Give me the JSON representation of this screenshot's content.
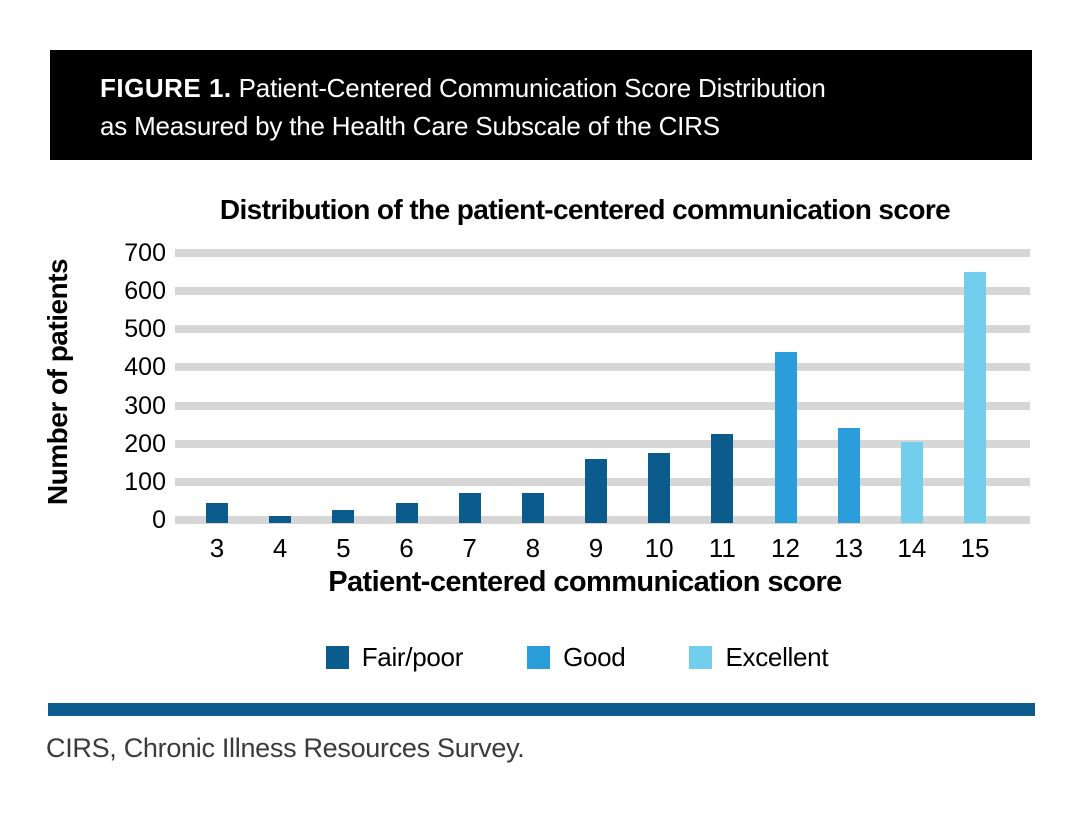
{
  "figure_header": {
    "label": "FIGURE 1.",
    "title_rest": " Patient-Centered Communication Score Distribution",
    "title_line2": "as Measured by the Health Care Subscale of the CIRS"
  },
  "chart_data": {
    "type": "bar",
    "title": "Distribution of the patient-centered communication score",
    "xlabel": "Patient-centered communication score",
    "ylabel": "Number of patients",
    "ylim": [
      0,
      700
    ],
    "yticks": [
      0,
      100,
      200,
      300,
      400,
      500,
      600,
      700
    ],
    "grid": true,
    "legend_position": "bottom",
    "categories": [
      "3",
      "4",
      "5",
      "6",
      "7",
      "8",
      "9",
      "10",
      "11",
      "12",
      "13",
      "14",
      "15"
    ],
    "series": [
      {
        "name": "Fair/poor",
        "color": "#0b5c8d",
        "values": [
          45,
          10,
          25,
          45,
          70,
          70,
          160,
          175,
          225,
          null,
          null,
          null,
          null
        ]
      },
      {
        "name": "Good",
        "color": "#2b9dda",
        "values": [
          null,
          null,
          null,
          null,
          null,
          null,
          null,
          null,
          null,
          440,
          240,
          null,
          null
        ]
      },
      {
        "name": "Excellent",
        "color": "#72ceec",
        "values": [
          null,
          null,
          null,
          null,
          null,
          null,
          null,
          null,
          null,
          null,
          null,
          205,
          650
        ]
      }
    ]
  },
  "colors": {
    "gridline": "#d6d6d6",
    "header_background": "#000000",
    "bottom_rule": "#0f5c8e"
  },
  "footnote": "CIRS, Chronic Illness Resources Survey."
}
